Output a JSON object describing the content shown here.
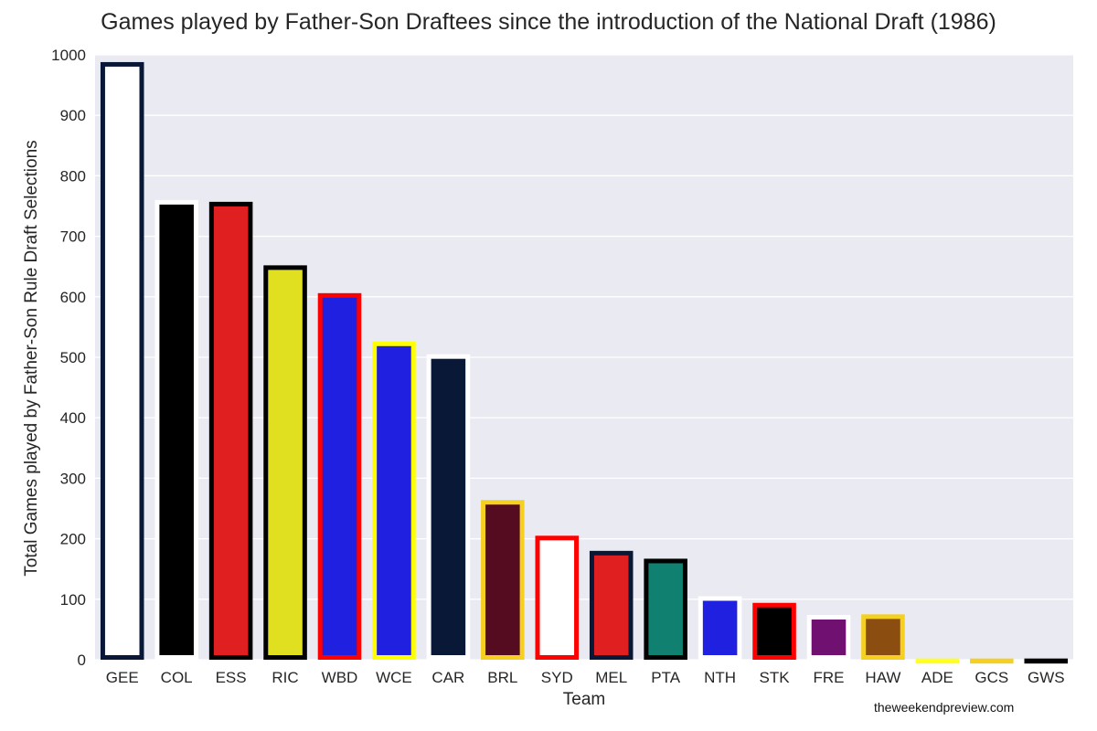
{
  "chart_data": {
    "type": "bar",
    "title": "Games played by Father-Son Draftees since the introduction of the National Draft (1986)",
    "xlabel": "Team",
    "ylabel": "Total Games played by Father-Son Rule Draft Selections",
    "ylim": [
      0,
      1000
    ],
    "yticks": [
      0,
      100,
      200,
      300,
      400,
      500,
      600,
      700,
      800,
      900,
      1000
    ],
    "grid": true,
    "background": "#EAEAF2",
    "categories": [
      "GEE",
      "COL",
      "ESS",
      "RIC",
      "WBD",
      "WCE",
      "CAR",
      "BRL",
      "SYD",
      "MEL",
      "PTA",
      "NTH",
      "STK",
      "FRE",
      "HAW",
      "ADE",
      "GCS",
      "GWS"
    ],
    "values": [
      988,
      760,
      757,
      652,
      606,
      526,
      505,
      264,
      205,
      180,
      167,
      105,
      94,
      74,
      75,
      2,
      2,
      2
    ],
    "fill_colors": [
      "#FFFFFF",
      "#000000",
      "#E02020",
      "#E0E020",
      "#2020E0",
      "#2020E0",
      "#0A1838",
      "#560C20",
      "#FFFFFF",
      "#E02020",
      "#108070",
      "#2020E0",
      "#000000",
      "#701070",
      "#8B4E10",
      "#FFFF20",
      "#F5D020",
      "#000000"
    ],
    "edge_colors": [
      "#0A1838",
      "#FFFFFF",
      "#000000",
      "#000000",
      "#FF0000",
      "#FFFF00",
      "#FFFFFF",
      "#F5D020",
      "#FF0000",
      "#0A1838",
      "#000000",
      "#FFFFFF",
      "#FF0000",
      "#FFFFFF",
      "#F5D020",
      "#FFFF20",
      "#F5D020",
      "#000000"
    ]
  },
  "credit": "theweekendpreview.com"
}
